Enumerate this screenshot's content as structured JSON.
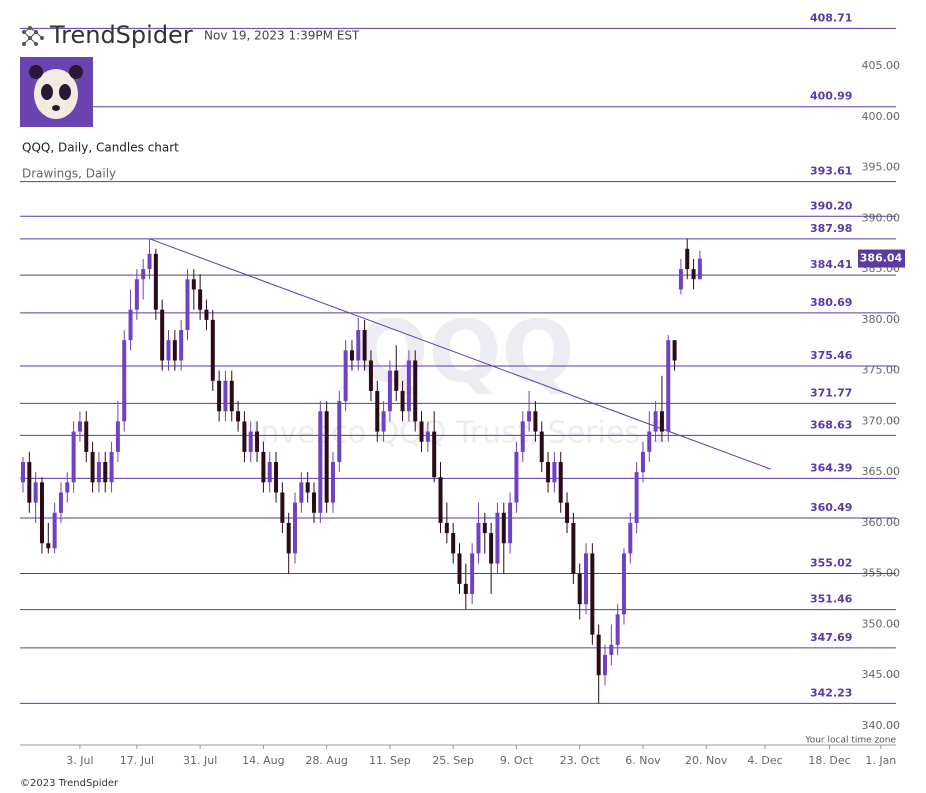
{
  "header": {
    "brand": "TrendSpider",
    "timestamp": "Nov 19, 2023 1:39PM EST",
    "footer": "©2023 TrendSpider"
  },
  "chart_data": {
    "type": "candlestick",
    "title": "QQQ, Daily, Candles chart",
    "subtitle": "Drawings, Daily",
    "watermark": "QQQ",
    "watermark_subtitle": "Invesco QQQ Trust, Series 1",
    "timezone_note": "Your local time zone",
    "up_color": "#6f42c1",
    "down_color": "#2b0b17",
    "level_color": "#5b3aa8",
    "xlim": [
      -0.474,
      138.0
    ],
    "ylim": [
      338.13,
      409.73
    ],
    "xticks": [
      {
        "value": 9,
        "label": "3. Jul"
      },
      {
        "value": 18,
        "label": "17. Jul"
      },
      {
        "value": 28,
        "label": "31. Jul"
      },
      {
        "value": 38,
        "label": "14. Aug"
      },
      {
        "value": 48,
        "label": "28. Aug"
      },
      {
        "value": 58,
        "label": "11. Sep"
      },
      {
        "value": 68,
        "label": "25. Sep"
      },
      {
        "value": 78,
        "label": "9. Oct"
      },
      {
        "value": 88,
        "label": "23. Oct"
      },
      {
        "value": 98,
        "label": "6. Nov"
      },
      {
        "value": 108,
        "label": "20. Nov"
      },
      {
        "value": 117.3,
        "label": "4. Dec"
      },
      {
        "value": 127.5,
        "label": "18. Dec"
      },
      {
        "value": 135.6,
        "label": "1. Jan"
      }
    ],
    "yticks": [
      {
        "value": 340,
        "label": "340.00"
      },
      {
        "value": 345,
        "label": "345.00"
      },
      {
        "value": 350,
        "label": "350.00"
      },
      {
        "value": 355,
        "label": "355.00"
      },
      {
        "value": 360,
        "label": "360.00"
      },
      {
        "value": 365,
        "label": "365.00"
      },
      {
        "value": 370,
        "label": "370.00"
      },
      {
        "value": 375,
        "label": "375.00"
      },
      {
        "value": 380,
        "label": "380.00"
      },
      {
        "value": 385,
        "label": "385.00"
      },
      {
        "value": 390,
        "label": "390.00"
      },
      {
        "value": 395,
        "label": "395.00"
      },
      {
        "value": 400,
        "label": "400.00"
      },
      {
        "value": 405,
        "label": "405.00"
      }
    ],
    "levels": [
      408.71,
      400.99,
      393.61,
      {
        "value": 390.2,
        "label": "390.20"
      },
      387.98,
      384.41,
      380.69,
      375.46,
      371.77,
      368.63,
      364.39,
      360.49,
      355.02,
      351.46,
      347.69,
      342.23
    ],
    "last_price": 386.04,
    "trendline": {
      "start": [
        20,
        387.98
      ],
      "end": [
        118.2,
        365.3
      ]
    },
    "candles": [
      [
        364,
        366.5,
        363,
        366
      ],
      [
        366,
        367,
        361,
        362
      ],
      [
        362,
        365,
        360,
        364
      ],
      [
        364,
        364.5,
        357,
        358
      ],
      [
        358,
        360,
        357,
        357.5
      ],
      [
        357.5,
        362,
        357,
        361
      ],
      [
        361,
        364,
        360,
        363
      ],
      [
        363,
        365,
        362,
        364
      ],
      [
        364,
        370,
        363,
        369
      ],
      [
        369,
        371,
        368,
        370
      ],
      [
        370,
        371,
        366,
        367
      ],
      [
        367,
        368,
        363,
        364
      ],
      [
        364,
        367,
        363,
        366
      ],
      [
        366,
        367,
        363,
        364
      ],
      [
        364,
        368,
        363,
        367
      ],
      [
        367,
        372,
        366,
        370
      ],
      [
        370,
        379,
        369,
        378
      ],
      [
        378,
        383,
        377,
        381
      ],
      [
        381,
        385,
        380,
        384
      ],
      [
        384,
        386,
        382,
        385
      ],
      [
        385,
        387.98,
        384,
        386.5
      ],
      [
        386.5,
        387,
        380,
        381
      ],
      [
        381,
        382,
        375,
        376
      ],
      [
        376,
        379,
        375,
        378
      ],
      [
        378,
        379,
        375,
        376
      ],
      [
        376,
        380,
        375,
        379
      ],
      [
        379,
        385,
        378,
        384
      ],
      [
        384,
        385,
        381,
        383
      ],
      [
        383,
        384.5,
        380,
        381
      ],
      [
        381,
        382,
        379,
        380
      ],
      [
        380,
        381,
        373,
        374
      ],
      [
        374,
        375,
        370,
        371
      ],
      [
        371,
        375,
        370,
        374
      ],
      [
        374,
        375,
        370,
        371
      ],
      [
        371,
        372,
        369,
        370
      ],
      [
        370,
        371,
        366,
        367
      ],
      [
        367,
        370,
        366,
        369
      ],
      [
        369,
        370,
        366,
        367
      ],
      [
        367,
        368,
        363,
        364
      ],
      [
        364,
        367,
        363,
        366
      ],
      [
        366,
        367,
        362,
        363
      ],
      [
        363,
        364,
        359,
        360
      ],
      [
        360,
        361,
        355,
        357
      ],
      [
        357,
        363,
        356,
        362
      ],
      [
        362,
        365,
        361,
        364
      ],
      [
        364,
        365,
        362,
        363
      ],
      [
        363,
        364,
        360,
        361
      ],
      [
        361,
        372,
        360,
        371
      ],
      [
        371,
        372,
        361,
        362
      ],
      [
        362,
        367,
        361,
        366
      ],
      [
        366,
        373,
        365,
        372
      ],
      [
        372,
        378,
        371,
        377
      ],
      [
        377,
        378,
        375,
        376
      ],
      [
        376,
        380.2,
        375,
        379
      ],
      [
        379,
        380,
        375,
        376
      ],
      [
        376,
        377,
        372,
        373
      ],
      [
        373,
        374,
        368,
        369
      ],
      [
        369,
        372,
        368,
        371
      ],
      [
        371,
        376,
        370,
        375
      ],
      [
        375,
        377.5,
        372,
        373
      ],
      [
        373,
        374,
        370,
        371
      ],
      [
        371,
        377,
        370,
        376
      ],
      [
        376,
        377,
        369,
        370
      ],
      [
        370,
        371,
        367,
        368
      ],
      [
        368,
        370,
        367,
        369
      ],
      [
        369,
        371,
        364,
        364.5
      ],
      [
        364.5,
        366,
        359,
        360
      ],
      [
        360,
        362,
        358,
        359
      ],
      [
        359,
        360,
        356,
        357
      ],
      [
        357,
        358,
        353,
        354
      ],
      [
        354,
        356,
        351.5,
        353
      ],
      [
        353,
        358,
        352,
        357
      ],
      [
        357,
        362,
        356,
        360
      ],
      [
        360,
        361,
        357,
        359
      ],
      [
        359,
        360,
        353,
        356
      ],
      [
        356,
        362,
        355,
        361
      ],
      [
        361,
        362,
        355,
        358
      ],
      [
        358,
        363,
        357,
        362
      ],
      [
        362,
        368,
        361,
        367
      ],
      [
        367,
        371,
        366,
        370
      ],
      [
        370,
        373,
        369,
        371
      ],
      [
        371,
        372,
        368,
        369
      ],
      [
        369,
        370,
        365,
        366
      ],
      [
        366,
        367,
        363,
        364
      ],
      [
        364,
        367,
        363,
        366
      ],
      [
        366,
        367,
        361,
        362
      ],
      [
        362,
        363,
        359,
        360
      ],
      [
        360,
        361,
        354,
        355
      ],
      [
        355,
        356,
        350.5,
        352
      ],
      [
        352,
        358,
        351,
        357
      ],
      [
        357,
        358,
        348,
        349
      ],
      [
        349,
        350,
        342.23,
        345
      ],
      [
        345,
        348,
        344,
        347
      ],
      [
        347,
        350,
        346,
        348
      ],
      [
        348,
        352,
        347,
        351
      ],
      [
        351,
        357.5,
        350,
        357
      ],
      [
        357,
        361,
        356,
        360
      ],
      [
        360,
        366,
        359,
        365
      ],
      [
        365,
        368,
        364,
        367
      ],
      [
        367,
        371,
        366,
        369
      ],
      [
        369,
        372,
        368,
        371
      ],
      [
        371,
        374.5,
        368,
        369
      ],
      [
        369,
        378.5,
        368,
        378
      ],
      [
        378,
        378,
        375,
        376
      ],
      [
        383,
        386,
        382.5,
        385
      ],
      [
        387,
        387.98,
        384,
        385
      ],
      [
        385,
        386,
        383,
        384
      ],
      [
        384,
        386.8,
        384,
        386.04
      ]
    ]
  }
}
